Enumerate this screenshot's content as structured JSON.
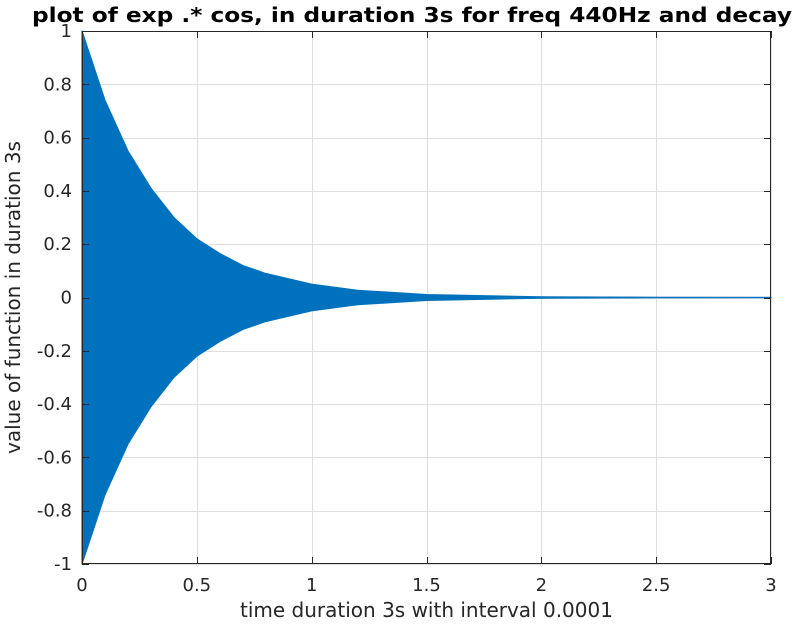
{
  "chart_data": {
    "type": "area",
    "title": "plot of exp .* cos, in duration 3s for freq 440Hz and decay",
    "xlabel": "time duration 3s with interval 0.0001",
    "ylabel": "value of function in duration 3s",
    "xlim": [
      0,
      3
    ],
    "ylim": [
      -1,
      1
    ],
    "xticks": [
      0,
      0.5,
      1,
      1.5,
      2,
      2.5,
      3
    ],
    "xtick_labels": [
      "0",
      "0.5",
      "1",
      "1.5",
      "2",
      "2.5",
      "3"
    ],
    "yticks": [
      -1,
      -0.8,
      -0.6,
      -0.4,
      -0.2,
      0,
      0.2,
      0.4,
      0.6,
      0.8,
      1
    ],
    "ytick_labels": [
      "-1",
      "-0.8",
      "-0.6",
      "-0.4",
      "-0.2",
      "0",
      "0.2",
      "0.4",
      "0.6",
      "0.8",
      "1"
    ],
    "grid": true,
    "series": [
      {
        "color": "#0072BD",
        "upper_envelope": {
          "x": [
            0,
            0.1,
            0.2,
            0.3,
            0.4,
            0.5,
            0.6,
            0.7,
            0.8,
            1.0,
            1.2,
            1.5,
            2.0,
            2.5,
            3.0
          ],
          "y": [
            1.0,
            0.74,
            0.55,
            0.41,
            0.3,
            0.22,
            0.165,
            0.12,
            0.09,
            0.05,
            0.027,
            0.011,
            0.0025,
            0.0005,
            0.0001
          ]
        },
        "lower_envelope": {
          "x": [
            0,
            0.1,
            0.2,
            0.3,
            0.4,
            0.5,
            0.6,
            0.7,
            0.8,
            1.0,
            1.2,
            1.5,
            2.0,
            2.5,
            3.0
          ],
          "y": [
            -1.0,
            -0.74,
            -0.55,
            -0.41,
            -0.3,
            -0.22,
            -0.165,
            -0.12,
            -0.09,
            -0.05,
            -0.027,
            -0.011,
            -0.0025,
            -0.0005,
            -0.0001
          ]
        }
      }
    ]
  }
}
